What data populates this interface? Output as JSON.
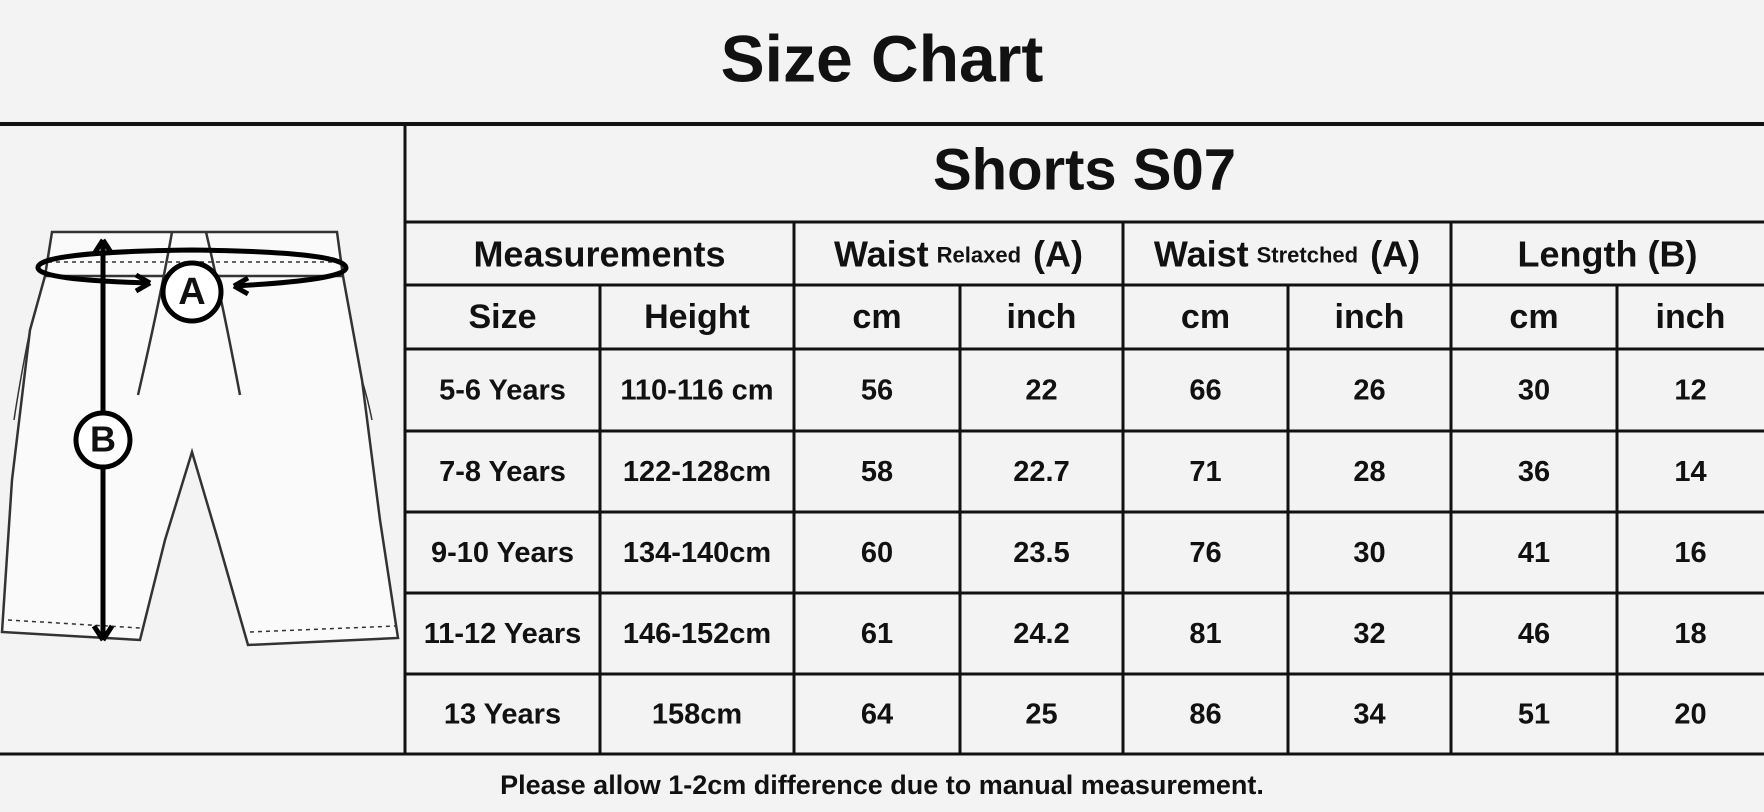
{
  "title": "Size Chart",
  "diagram": {
    "labels": [
      "A",
      "B"
    ]
  },
  "table": {
    "title": "Shorts S07",
    "header_groups": [
      {
        "main": "Measurements"
      },
      {
        "main": "Waist",
        "qualifier": "Relaxed",
        "suffix": "(A)"
      },
      {
        "main": "Waist",
        "qualifier": "Stretched",
        "suffix": "(A)"
      },
      {
        "main": "Length (B)"
      }
    ],
    "subheaders": [
      "Size",
      "Height",
      "cm",
      "inch",
      "cm",
      "inch",
      "cm",
      "inch"
    ],
    "rows": [
      [
        "5-6 Years",
        "110-116 cm",
        56,
        22,
        66,
        26,
        30,
        12
      ],
      [
        "7-8 Years",
        "122-128cm",
        58,
        22.7,
        71,
        28,
        36,
        14
      ],
      [
        "9-10 Years",
        "134-140cm",
        60,
        23.5,
        76,
        30,
        41,
        16
      ],
      [
        "11-12 Years",
        "146-152cm",
        61,
        24.2,
        81,
        32,
        46,
        18
      ],
      [
        "13 Years",
        "158cm",
        64,
        25,
        86,
        34,
        51,
        20
      ]
    ]
  },
  "footer": "Please allow 1-2cm difference due to manual measurement."
}
